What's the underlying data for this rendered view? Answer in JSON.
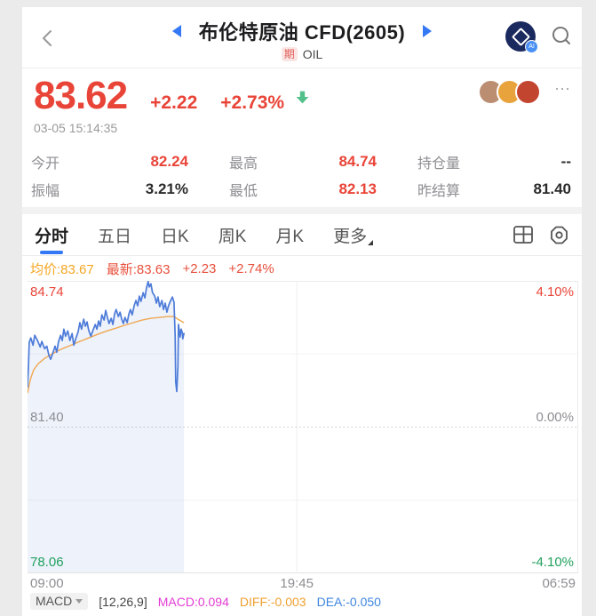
{
  "colors": {
    "up_red": "#e94438",
    "down_green": "#21a15e",
    "accent_blue": "#3478f6",
    "avg_orange": "#f5a623"
  },
  "header": {
    "title": "布伦特原油 CFD(2605)",
    "instrument_badge": "期",
    "instrument_code": "OIL",
    "ai_badge": "AI"
  },
  "quote": {
    "price": "83.62",
    "change": "+2.22",
    "change_percent": "+2.73%",
    "timestamp": "03-05 15:14:35",
    "more_icon": "⋯",
    "avatar_colors": [
      "#bb8e72",
      "#e8a33c",
      "#c2452f"
    ]
  },
  "stats": {
    "rows": [
      [
        {
          "label": "今开",
          "value": "82.24",
          "color": "#e94438"
        },
        {
          "label": "最高",
          "value": "84.74",
          "color": "#e94438"
        },
        {
          "label": "持仓量",
          "value": "--",
          "color": "#2b2b2b"
        }
      ],
      [
        {
          "label": "振幅",
          "value": "3.21%",
          "color": "#2b2b2b"
        },
        {
          "label": "最低",
          "value": "82.13",
          "color": "#e94438"
        },
        {
          "label": "昨结算",
          "value": "81.40",
          "color": "#2b2b2b"
        }
      ]
    ]
  },
  "tabs": {
    "items": [
      {
        "label": "分时"
      },
      {
        "label": "五日"
      },
      {
        "label": "日K"
      },
      {
        "label": "周K"
      },
      {
        "label": "月K"
      },
      {
        "label": "更多"
      }
    ]
  },
  "chart_header": {
    "avg": "均价:83.67",
    "last": "最新:83.63",
    "change": "+2.23",
    "change_percent": "+2.74%"
  },
  "chart_data": {
    "type": "line",
    "title": "分时 intraday chart, 布伦特原油 CFD(2605)",
    "y_axis": {
      "top_price": 84.74,
      "middle_price": 81.4,
      "bottom_price": 78.06,
      "top_pct": "4.10%",
      "middle_pct": "0.00%",
      "bottom_pct": "-4.10%"
    },
    "y_labels": {
      "left": [
        {
          "text": "84.74",
          "color": "#e94438"
        },
        {
          "text": "81.40",
          "color": "#8e8e93"
        },
        {
          "text": "78.06",
          "color": "#21a15e"
        }
      ],
      "right": [
        {
          "text": "4.10%",
          "color": "#e94438"
        },
        {
          "text": "0.00%",
          "color": "#8e8e93"
        },
        {
          "text": "-4.10%",
          "color": "#21a15e"
        }
      ]
    },
    "x_axis": {
      "labels": [
        "09:00",
        "19:45",
        "06:59"
      ],
      "gridline_frac": 0.489
    },
    "series": [
      {
        "name": "price",
        "color": "#4d7bd9",
        "fill": "#4d7bd9",
        "fill_opacity": 0.1,
        "points": [
          [
            0.0,
            0.363
          ],
          [
            0.002,
            0.277
          ],
          [
            0.003,
            0.21
          ],
          [
            0.006,
            0.195
          ],
          [
            0.01,
            0.22
          ],
          [
            0.013,
            0.186
          ],
          [
            0.018,
            0.204
          ],
          [
            0.023,
            0.226
          ],
          [
            0.026,
            0.207
          ],
          [
            0.031,
            0.232
          ],
          [
            0.035,
            0.223
          ],
          [
            0.039,
            0.256
          ],
          [
            0.042,
            0.268
          ],
          [
            0.047,
            0.241
          ],
          [
            0.05,
            0.223
          ],
          [
            0.053,
            0.244
          ],
          [
            0.056,
            0.21
          ],
          [
            0.06,
            0.186
          ],
          [
            0.063,
            0.204
          ],
          [
            0.066,
            0.165
          ],
          [
            0.069,
            0.189
          ],
          [
            0.073,
            0.171
          ],
          [
            0.077,
            0.204
          ],
          [
            0.081,
            0.18
          ],
          [
            0.084,
            0.22
          ],
          [
            0.087,
            0.201
          ],
          [
            0.092,
            0.174
          ],
          [
            0.095,
            0.143
          ],
          [
            0.098,
            0.165
          ],
          [
            0.102,
            0.131
          ],
          [
            0.105,
            0.155
          ],
          [
            0.108,
            0.14
          ],
          [
            0.111,
            0.168
          ],
          [
            0.115,
            0.189
          ],
          [
            0.119,
            0.168
          ],
          [
            0.123,
            0.149
          ],
          [
            0.126,
            0.165
          ],
          [
            0.129,
            0.137
          ],
          [
            0.132,
            0.155
          ],
          [
            0.135,
            0.116
          ],
          [
            0.139,
            0.134
          ],
          [
            0.142,
            0.101
          ],
          [
            0.145,
            0.125
          ],
          [
            0.148,
            0.146
          ],
          [
            0.152,
            0.128
          ],
          [
            0.155,
            0.149
          ],
          [
            0.158,
            0.113
          ],
          [
            0.161,
            0.098
          ],
          [
            0.165,
            0.122
          ],
          [
            0.168,
            0.107
          ],
          [
            0.171,
            0.131
          ],
          [
            0.174,
            0.146
          ],
          [
            0.177,
            0.125
          ],
          [
            0.181,
            0.143
          ],
          [
            0.184,
            0.113
          ],
          [
            0.187,
            0.098
          ],
          [
            0.19,
            0.116
          ],
          [
            0.194,
            0.082
          ],
          [
            0.197,
            0.067
          ],
          [
            0.2,
            0.085
          ],
          [
            0.203,
            0.052
          ],
          [
            0.206,
            0.07
          ],
          [
            0.21,
            0.04
          ],
          [
            0.213,
            0.058
          ],
          [
            0.216,
            0.024
          ],
          [
            0.219,
            0.002
          ],
          [
            0.221,
            0.021
          ],
          [
            0.224,
            0.01
          ],
          [
            0.227,
            0.04
          ],
          [
            0.231,
            0.052
          ],
          [
            0.234,
            0.076
          ],
          [
            0.237,
            0.055
          ],
          [
            0.24,
            0.088
          ],
          [
            0.244,
            0.067
          ],
          [
            0.247,
            0.098
          ],
          [
            0.25,
            0.076
          ],
          [
            0.253,
            0.107
          ],
          [
            0.256,
            0.085
          ],
          [
            0.26,
            0.067
          ],
          [
            0.263,
            0.055
          ],
          [
            0.266,
            0.073
          ],
          [
            0.268,
            0.186
          ],
          [
            0.269,
            0.345
          ],
          [
            0.271,
            0.378
          ],
          [
            0.273,
            0.293
          ],
          [
            0.274,
            0.149
          ],
          [
            0.276,
            0.174
          ],
          [
            0.277,
            0.192
          ],
          [
            0.279,
            0.165
          ],
          [
            0.281,
            0.177
          ],
          [
            0.282,
            0.198
          ],
          [
            0.284,
            0.18
          ]
        ]
      },
      {
        "name": "average",
        "color": "#f0a852",
        "points": [
          [
            0.0,
            0.384
          ],
          [
            0.005,
            0.338
          ],
          [
            0.011,
            0.305
          ],
          [
            0.019,
            0.284
          ],
          [
            0.031,
            0.265
          ],
          [
            0.047,
            0.247
          ],
          [
            0.063,
            0.232
          ],
          [
            0.079,
            0.22
          ],
          [
            0.095,
            0.207
          ],
          [
            0.111,
            0.195
          ],
          [
            0.127,
            0.183
          ],
          [
            0.144,
            0.171
          ],
          [
            0.16,
            0.162
          ],
          [
            0.176,
            0.152
          ],
          [
            0.192,
            0.143
          ],
          [
            0.208,
            0.134
          ],
          [
            0.224,
            0.128
          ],
          [
            0.24,
            0.125
          ],
          [
            0.256,
            0.122
          ],
          [
            0.266,
            0.122
          ],
          [
            0.273,
            0.131
          ],
          [
            0.284,
            0.143
          ]
        ]
      }
    ]
  },
  "macd": {
    "selector": "MACD",
    "params": "[12,26,9]",
    "values": [
      {
        "text": "MACD:0.094",
        "color": "#e33bd3"
      },
      {
        "text": "DIFF:-0.003",
        "color": "#f0a030"
      },
      {
        "text": "DEA:-0.050",
        "color": "#3e86e0"
      }
    ]
  }
}
